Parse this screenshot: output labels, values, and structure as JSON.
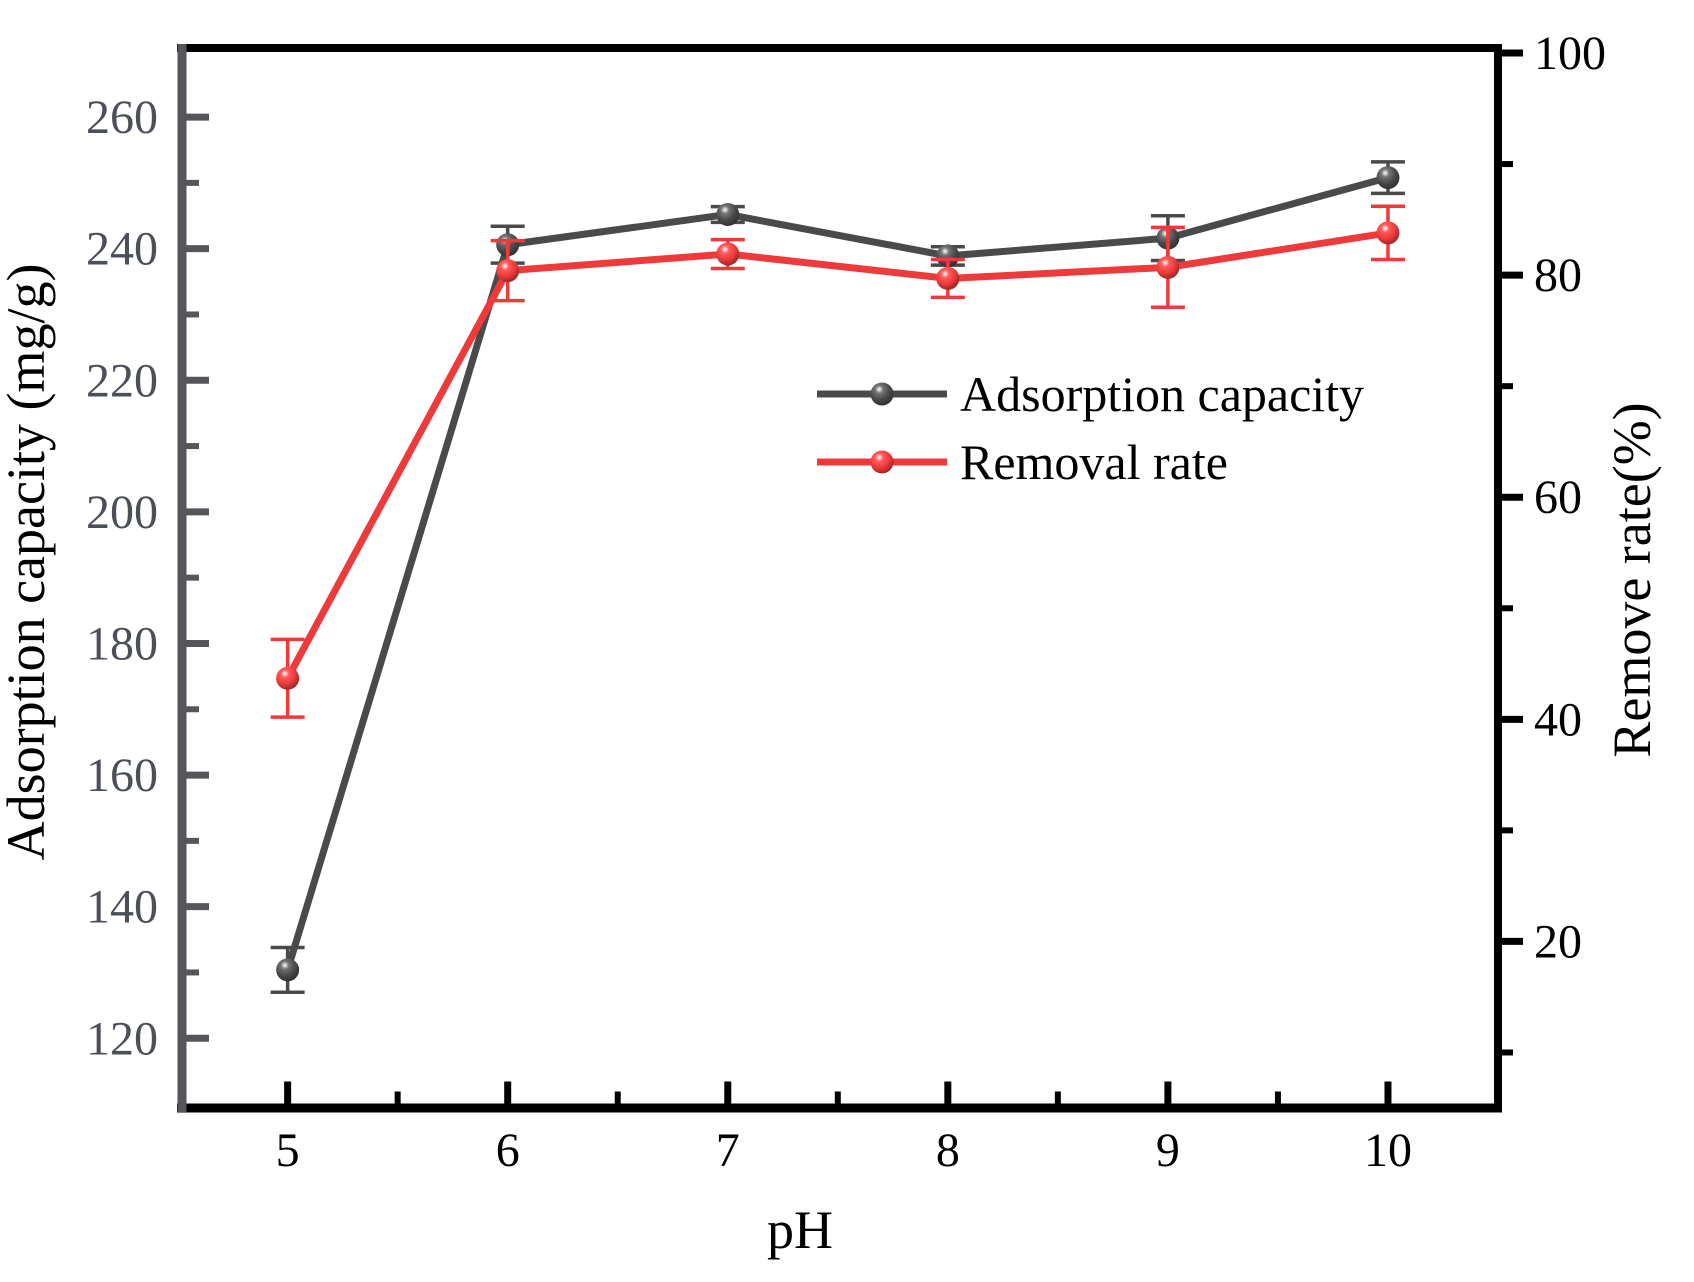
{
  "figure": {
    "background": "#ffffff",
    "frame": {
      "left_color": "#55565a",
      "top_color": "#000000",
      "right_color": "#000000",
      "bottom_color": "#000000"
    },
    "left_tick_label_color": "#4b4f58",
    "text_color": "#000000"
  },
  "chart_data": {
    "type": "line",
    "title": "",
    "xlabel": "pH",
    "x": [
      5,
      6,
      7,
      8,
      9,
      10
    ],
    "xlim": [
      4.52,
      10.5
    ],
    "x_major_ticks": [
      5,
      6,
      7,
      8,
      9,
      10
    ],
    "x_minor_ticks": [
      5.5,
      6.5,
      7.5,
      8.5,
      9.5
    ],
    "left_axis": {
      "label": "Adsorption capacity (mg/g)",
      "lim": [
        109.4,
        270.5
      ],
      "major_ticks": [
        260,
        240,
        220,
        200,
        180,
        160,
        140,
        120
      ],
      "minor_ticks": [
        250,
        230,
        210,
        190,
        170,
        150,
        130
      ]
    },
    "right_axis": {
      "label": "Remove rate(%)",
      "lim": [
        5.0,
        100.45
      ],
      "major_ticks": [
        100,
        80,
        60,
        40,
        20
      ],
      "minor_ticks": [
        90,
        70,
        50,
        30,
        10
      ]
    },
    "grid": false,
    "series": [
      {
        "name": "Adsorption capacity",
        "axis": "left",
        "color": "#4a4a4a",
        "marker": "sphere",
        "values": [
          130.4,
          240.6,
          245.2,
          238.9,
          241.6,
          250.8
        ],
        "errors": [
          3.4,
          2.8,
          1.2,
          1.4,
          3.4,
          2.4
        ]
      },
      {
        "name": "Removal rate",
        "axis": "right",
        "color": "#ee3a3b",
        "marker": "sphere",
        "values": [
          43.7,
          80.4,
          81.9,
          79.7,
          80.7,
          83.8
        ],
        "errors": [
          3.5,
          2.7,
          1.3,
          1.7,
          3.6,
          2.4
        ]
      }
    ],
    "legend": {
      "items": [
        "Adsorption capacity",
        "Removal rate"
      ],
      "position": "upper-middle-right"
    }
  }
}
